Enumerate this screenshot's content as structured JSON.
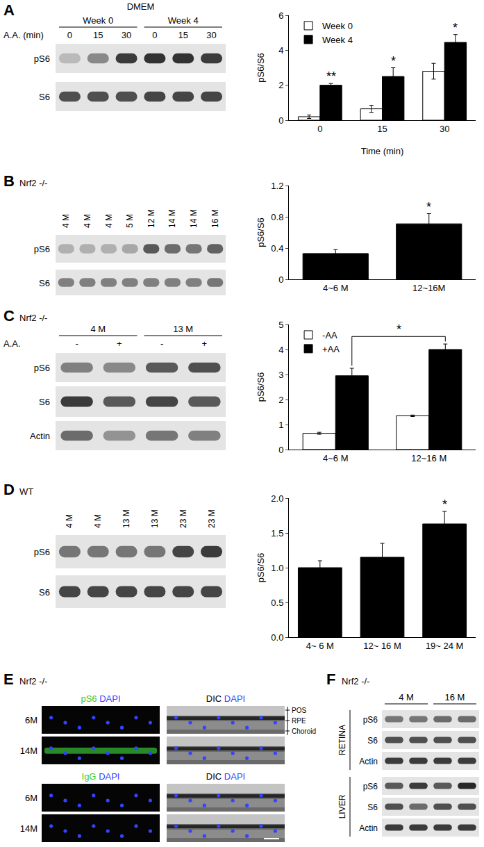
{
  "chart_data": [
    {
      "panel": "A",
      "type": "bar",
      "categories": [
        "0",
        "15",
        "30"
      ],
      "x_label": "Time (min)",
      "y_label": "pS6/S6",
      "ylim": [
        0,
        6
      ],
      "yticks": [
        0,
        2,
        4,
        6
      ],
      "legend": "top-left",
      "series": [
        {
          "name": "Week 0",
          "color": "#ffffff",
          "values": [
            0.2,
            0.65,
            2.8
          ],
          "errors": [
            0.1,
            0.2,
            0.45
          ]
        },
        {
          "name": "Week 4",
          "color": "#000000",
          "values": [
            2.0,
            2.5,
            4.45
          ],
          "errors": [
            0.1,
            0.5,
            0.45
          ]
        }
      ],
      "annotations": [
        {
          "category": "0",
          "series": "Week 4",
          "text": "**"
        },
        {
          "category": "15",
          "series": "Week 4",
          "text": "*"
        },
        {
          "category": "30",
          "series": "Week 4",
          "text": "*"
        }
      ]
    },
    {
      "panel": "B",
      "type": "bar",
      "categories": [
        "4~6 M",
        "12~16M"
      ],
      "y_label": "pS6/S6",
      "ylim": [
        0,
        1.2
      ],
      "yticks": [
        0,
        0.4,
        0.8,
        1.2
      ],
      "color": "#000000",
      "values": [
        0.33,
        0.71
      ],
      "errors": [
        0.05,
        0.13
      ],
      "annotations": [
        {
          "category": "12~16M",
          "text": "*"
        }
      ]
    },
    {
      "panel": "C",
      "type": "bar",
      "categories": [
        "4~6 M",
        "12~16 M"
      ],
      "y_label": "pS6/S6",
      "ylim": [
        0,
        5
      ],
      "yticks": [
        0,
        1,
        2,
        3,
        4,
        5
      ],
      "legend": "top-left",
      "series": [
        {
          "name": "-AA",
          "color": "#ffffff",
          "values": [
            0.65,
            1.35
          ],
          "errors": [
            0.04,
            0.03
          ]
        },
        {
          "name": "+AA",
          "color": "#000000",
          "values": [
            2.95,
            4.0
          ],
          "errors": [
            0.3,
            0.22
          ]
        }
      ],
      "annotations": [
        {
          "from": {
            "category": "4~6 M",
            "series": "+AA"
          },
          "to": {
            "category": "12~16 M",
            "series": "+AA"
          },
          "text": "*"
        }
      ]
    },
    {
      "panel": "D",
      "type": "bar",
      "categories": [
        "4~ 6 M",
        "12~ 16 M",
        "19~ 24 M"
      ],
      "y_label": "pS6/S6",
      "ylim": [
        0,
        2
      ],
      "yticks": [
        {
          "value": 0,
          "label": "0.0"
        },
        {
          "value": 0.5,
          "label": "0.5"
        },
        {
          "value": 1,
          "label": "1.0"
        },
        {
          "value": 1.5,
          "label": "1.5"
        },
        {
          "value": 2,
          "label": "2.0"
        }
      ],
      "color": "#000000",
      "values": [
        1.0,
        1.15,
        1.63
      ],
      "errors": [
        0.1,
        0.2,
        0.18
      ],
      "annotations": [
        {
          "category": "19~ 24 M",
          "text": "*"
        }
      ]
    }
  ],
  "blots": [
    {
      "panel": "A",
      "title": "DMEM",
      "groups": [
        "Week 0",
        "Week 4"
      ],
      "lane_header": "A.A. (min)",
      "lanes": [
        "0",
        "15",
        "30",
        "0",
        "15",
        "30"
      ],
      "rows": [
        {
          "label": "pS6",
          "bands": [
            0.2,
            0.45,
            0.85,
            0.9,
            0.9,
            0.85
          ]
        },
        {
          "label": "S6",
          "bands": [
            0.75,
            0.75,
            0.75,
            0.8,
            0.8,
            0.8
          ]
        }
      ]
    },
    {
      "panel": "B",
      "label": "Nrf2 -/-",
      "lanes": [
        "4 M",
        "4 M",
        "4 M",
        "5 M",
        "12 M",
        "14 M",
        "14 M",
        "16 M"
      ],
      "rows": [
        {
          "label": "pS6",
          "bands": [
            0.25,
            0.25,
            0.25,
            0.3,
            0.7,
            0.6,
            0.55,
            0.65
          ]
        },
        {
          "label": "S6",
          "bands": [
            0.5,
            0.5,
            0.5,
            0.5,
            0.5,
            0.5,
            0.5,
            0.55
          ]
        }
      ]
    },
    {
      "panel": "C",
      "label": "Nrf2 -/-",
      "groups": [
        "4 M",
        "13 M"
      ],
      "lane_header": "A.A.",
      "lanes": [
        "-",
        "+",
        "-",
        "+"
      ],
      "rows": [
        {
          "label": "pS6",
          "bands": [
            0.5,
            0.45,
            0.7,
            0.75
          ]
        },
        {
          "label": "S6",
          "bands": [
            0.85,
            0.7,
            0.8,
            0.7
          ]
        },
        {
          "label": "Actin",
          "bands": [
            0.6,
            0.4,
            0.55,
            0.5
          ]
        }
      ]
    },
    {
      "panel": "D",
      "label": "WT",
      "lanes": [
        "4 M",
        "4 M",
        "13 M",
        "13 M",
        "23 M",
        "23 M"
      ],
      "rows": [
        {
          "label": "pS6",
          "bands": [
            0.55,
            0.55,
            0.55,
            0.55,
            0.8,
            0.85
          ]
        },
        {
          "label": "S6",
          "bands": [
            0.8,
            0.8,
            0.8,
            0.8,
            0.8,
            0.8
          ]
        }
      ]
    }
  ],
  "images": {
    "panel": "E",
    "label": "Nrf2 -/-",
    "layers": [
      "POS",
      "RPE",
      "Choroid"
    ],
    "blocks": [
      {
        "columns": [
          [
            {
              "text": "pS6",
              "color": "#33cc33"
            },
            {
              "text": "DAPI",
              "color": "#3344ff"
            }
          ],
          [
            {
              "text": "DIC",
              "color": "#000000"
            },
            {
              "text": "DAPI",
              "color": "#3344ff"
            }
          ]
        ],
        "rows": [
          "6M",
          "14M"
        ],
        "green_signal": [
          false,
          true
        ]
      },
      {
        "columns": [
          [
            {
              "text": "IgG",
              "color": "#33cc33"
            },
            {
              "text": "DAPI",
              "color": "#3344ff"
            }
          ],
          [
            {
              "text": "DIC",
              "color": "#000000"
            },
            {
              "text": "DAPI",
              "color": "#3344ff"
            }
          ]
        ],
        "rows": [
          "6M",
          "14M"
        ],
        "green_signal": [
          false,
          false
        ]
      }
    ]
  },
  "tissue_blot": {
    "panel": "F",
    "label": "Nrf2 -/-",
    "groups": [
      "4 M",
      "16 M"
    ],
    "tissues": [
      {
        "label": "RETINA",
        "rows": [
          {
            "label": "pS6",
            "bands": [
              0.55,
              0.55,
              0.6,
              0.6
            ]
          },
          {
            "label": "S6",
            "bands": [
              0.75,
              0.75,
              0.75,
              0.75
            ]
          },
          {
            "label": "Actin",
            "bands": [
              0.85,
              0.85,
              0.85,
              0.85
            ]
          }
        ]
      },
      {
        "label": "LIVER",
        "rows": [
          {
            "label": "pS6",
            "bands": [
              0.7,
              0.85,
              0.7,
              0.95
            ]
          },
          {
            "label": "S6",
            "bands": [
              0.75,
              0.6,
              0.75,
              0.75
            ]
          },
          {
            "label": "Actin",
            "bands": [
              0.85,
              0.85,
              0.85,
              0.85
            ]
          }
        ]
      }
    ]
  }
}
